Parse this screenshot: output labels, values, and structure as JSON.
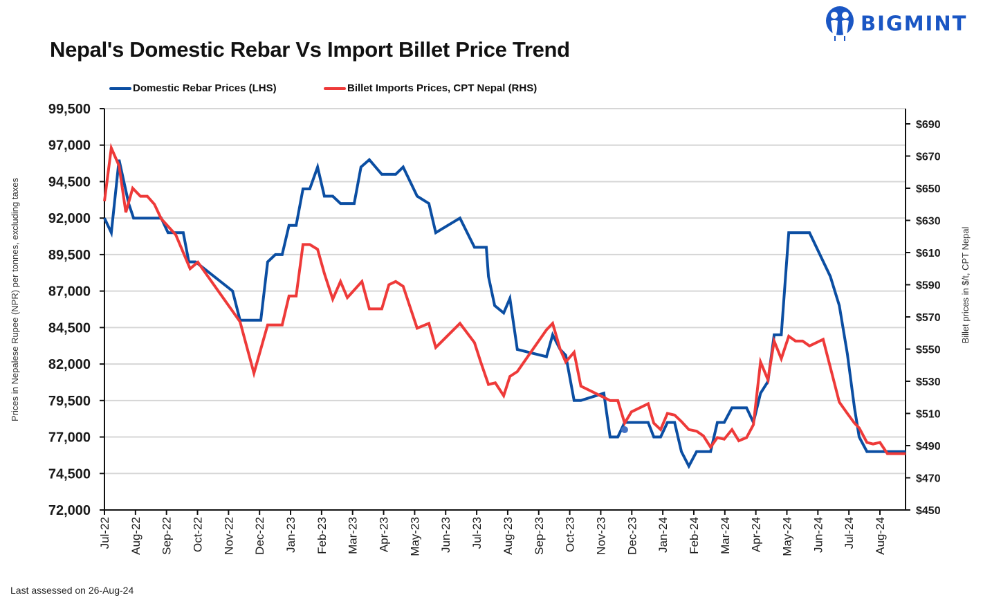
{
  "header": {
    "title": "Nepal's Domestic Rebar Vs Import Billet Price Trend",
    "brand": "BIGMINT",
    "brand_color": "#1a56c4"
  },
  "footer": {
    "note": "Last assessed on 26-Aug-24"
  },
  "chart_data": {
    "type": "line",
    "title": "Nepal's Domestic Rebar Vs Import Billet Price Trend",
    "xlabel": "",
    "x_unit": "months since Jul-22",
    "x_range": [
      0,
      25.83
    ],
    "x_ticks": [
      "Jul-22",
      "Aug-22",
      "Sep-22",
      "Oct-22",
      "Nov-22",
      "Dec-22",
      "Jan-23",
      "Feb-23",
      "Mar-23",
      "Apr-23",
      "May-23",
      "Jun-23",
      "Jul-23",
      "Aug-23",
      "Sep-23",
      "Oct-23",
      "Nov-23",
      "Dec-23",
      "Jan-24",
      "Feb-24",
      "Mar-24",
      "Apr-24",
      "May-24",
      "Jun-24",
      "Jul-24",
      "Aug-24"
    ],
    "y_left": {
      "label": "Prices in Nepalese Rupee (NPR) per tonnes, excluding taxes",
      "range": [
        72000,
        99500
      ],
      "ticks": [
        "72,000",
        "74,500",
        "77,000",
        "79,500",
        "82,000",
        "84,500",
        "87,000",
        "89,500",
        "92,000",
        "94,500",
        "97,000",
        "99,500"
      ],
      "tick_values": [
        72000,
        74500,
        77000,
        79500,
        82000,
        84500,
        87000,
        89500,
        92000,
        94500,
        97000,
        99500
      ]
    },
    "y_right": {
      "label": "Billet prices in $/t, CPT Nepal",
      "range": [
        450,
        700
      ],
      "ticks": [
        "$450",
        "$470",
        "$490",
        "$510",
        "$530",
        "$550",
        "$570",
        "$590",
        "$610",
        "$630",
        "$650",
        "$670",
        "$690"
      ],
      "tick_values": [
        450,
        470,
        490,
        510,
        530,
        550,
        570,
        590,
        610,
        630,
        650,
        670,
        690
      ]
    },
    "grid": true,
    "legend_position": "top-left",
    "series": [
      {
        "name": "Domestic Rebar Prices (LHS)",
        "axis": "left",
        "color": "#0b4ea2",
        "points": [
          [
            0.0,
            92000
          ],
          [
            0.22,
            91000
          ],
          [
            0.47,
            96000
          ],
          [
            0.78,
            93000
          ],
          [
            0.94,
            92000
          ],
          [
            1.83,
            92000
          ],
          [
            2.05,
            91000
          ],
          [
            2.54,
            91000
          ],
          [
            2.72,
            89000
          ],
          [
            2.94,
            89000
          ],
          [
            4.13,
            87000
          ],
          [
            4.37,
            85000
          ],
          [
            5.04,
            85000
          ],
          [
            5.26,
            89000
          ],
          [
            5.51,
            89500
          ],
          [
            5.73,
            89500
          ],
          [
            5.95,
            91500
          ],
          [
            6.18,
            91500
          ],
          [
            6.4,
            94000
          ],
          [
            6.62,
            94000
          ],
          [
            6.87,
            95500
          ],
          [
            7.09,
            93500
          ],
          [
            7.36,
            93500
          ],
          [
            7.61,
            93000
          ],
          [
            8.05,
            93000
          ],
          [
            8.27,
            95500
          ],
          [
            8.54,
            96000
          ],
          [
            8.94,
            95000
          ],
          [
            9.39,
            95000
          ],
          [
            9.63,
            95500
          ],
          [
            10.08,
            93500
          ],
          [
            10.46,
            93000
          ],
          [
            10.68,
            91000
          ],
          [
            11.46,
            92000
          ],
          [
            11.93,
            90000
          ],
          [
            12.31,
            90000
          ],
          [
            12.38,
            88000
          ],
          [
            12.58,
            86000
          ],
          [
            12.87,
            85500
          ],
          [
            13.07,
            86500
          ],
          [
            13.31,
            83000
          ],
          [
            14.25,
            82500
          ],
          [
            14.45,
            84000
          ],
          [
            14.69,
            83000
          ],
          [
            14.87,
            82600
          ],
          [
            15.14,
            79500
          ],
          [
            15.36,
            79500
          ],
          [
            16.1,
            80000
          ],
          [
            16.3,
            77000
          ],
          [
            16.55,
            77000
          ],
          [
            16.77,
            78000
          ],
          [
            17.53,
            78000
          ],
          [
            17.71,
            77000
          ],
          [
            17.93,
            77000
          ],
          [
            18.15,
            78000
          ],
          [
            18.38,
            78000
          ],
          [
            18.6,
            76000
          ],
          [
            18.84,
            75000
          ],
          [
            19.09,
            76000
          ],
          [
            19.54,
            76000
          ],
          [
            19.76,
            78000
          ],
          [
            19.98,
            78000
          ],
          [
            20.23,
            79000
          ],
          [
            20.7,
            79000
          ],
          [
            20.92,
            78000
          ],
          [
            21.15,
            80000
          ],
          [
            21.39,
            80800
          ],
          [
            21.59,
            84000
          ],
          [
            21.82,
            84000
          ],
          [
            22.06,
            91000
          ],
          [
            22.73,
            91000
          ],
          [
            23.4,
            88000
          ],
          [
            23.69,
            86000
          ],
          [
            23.95,
            82700
          ],
          [
            24.18,
            79000
          ],
          [
            24.33,
            77000
          ],
          [
            24.58,
            76000
          ],
          [
            25.83,
            76000
          ]
        ]
      },
      {
        "name": "Billet Imports Prices, CPT Nepal (RHS)",
        "axis": "right",
        "color": "#ee3a39",
        "points": [
          [
            0.0,
            642
          ],
          [
            0.22,
            675
          ],
          [
            0.47,
            664
          ],
          [
            0.69,
            635
          ],
          [
            0.91,
            650
          ],
          [
            1.16,
            645
          ],
          [
            1.38,
            645
          ],
          [
            1.61,
            640
          ],
          [
            1.83,
            631
          ],
          [
            2.3,
            621
          ],
          [
            2.76,
            600
          ],
          [
            3.01,
            604
          ],
          [
            4.37,
            567
          ],
          [
            4.82,
            535
          ],
          [
            5.26,
            565
          ],
          [
            5.73,
            565
          ],
          [
            5.95,
            583
          ],
          [
            6.18,
            583
          ],
          [
            6.4,
            615
          ],
          [
            6.62,
            615
          ],
          [
            6.87,
            612
          ],
          [
            7.09,
            597
          ],
          [
            7.36,
            581
          ],
          [
            7.61,
            592
          ],
          [
            7.83,
            582
          ],
          [
            8.3,
            592
          ],
          [
            8.54,
            575
          ],
          [
            8.94,
            575
          ],
          [
            9.17,
            590
          ],
          [
            9.39,
            592
          ],
          [
            9.63,
            589
          ],
          [
            10.08,
            563
          ],
          [
            10.46,
            566
          ],
          [
            10.68,
            551
          ],
          [
            11.46,
            566
          ],
          [
            11.93,
            554
          ],
          [
            12.13,
            542
          ],
          [
            12.38,
            528
          ],
          [
            12.6,
            529
          ],
          [
            12.87,
            521
          ],
          [
            13.07,
            533
          ],
          [
            13.31,
            536
          ],
          [
            14.25,
            562
          ],
          [
            14.45,
            566
          ],
          [
            14.69,
            550
          ],
          [
            14.87,
            542
          ],
          [
            15.14,
            548
          ],
          [
            15.36,
            527
          ],
          [
            16.1,
            520
          ],
          [
            16.3,
            518
          ],
          [
            16.55,
            518
          ],
          [
            16.77,
            504
          ],
          [
            16.99,
            511
          ],
          [
            17.53,
            516
          ],
          [
            17.71,
            504
          ],
          [
            17.93,
            500
          ],
          [
            18.15,
            510
          ],
          [
            18.38,
            509
          ],
          [
            18.6,
            505
          ],
          [
            18.84,
            500
          ],
          [
            19.09,
            499
          ],
          [
            19.31,
            496
          ],
          [
            19.54,
            489
          ],
          [
            19.76,
            495
          ],
          [
            19.98,
            494
          ],
          [
            20.23,
            500
          ],
          [
            20.45,
            493
          ],
          [
            20.7,
            495
          ],
          [
            20.92,
            503
          ],
          [
            21.15,
            542
          ],
          [
            21.39,
            531
          ],
          [
            21.59,
            555
          ],
          [
            21.82,
            544
          ],
          [
            22.06,
            558
          ],
          [
            22.28,
            555
          ],
          [
            22.51,
            555
          ],
          [
            22.73,
            552
          ],
          [
            23.17,
            556
          ],
          [
            23.69,
            517
          ],
          [
            23.95,
            510
          ],
          [
            24.18,
            504
          ],
          [
            24.33,
            501
          ],
          [
            24.58,
            492
          ],
          [
            24.78,
            491
          ],
          [
            25.0,
            492
          ],
          [
            25.24,
            485
          ],
          [
            25.49,
            485
          ],
          [
            25.83,
            485
          ]
        ]
      }
    ],
    "annotations": [
      {
        "type": "marker",
        "series": "Domestic Rebar Prices (LHS)",
        "x": 16.77,
        "y": 77500,
        "color": "#4472c4"
      }
    ]
  }
}
